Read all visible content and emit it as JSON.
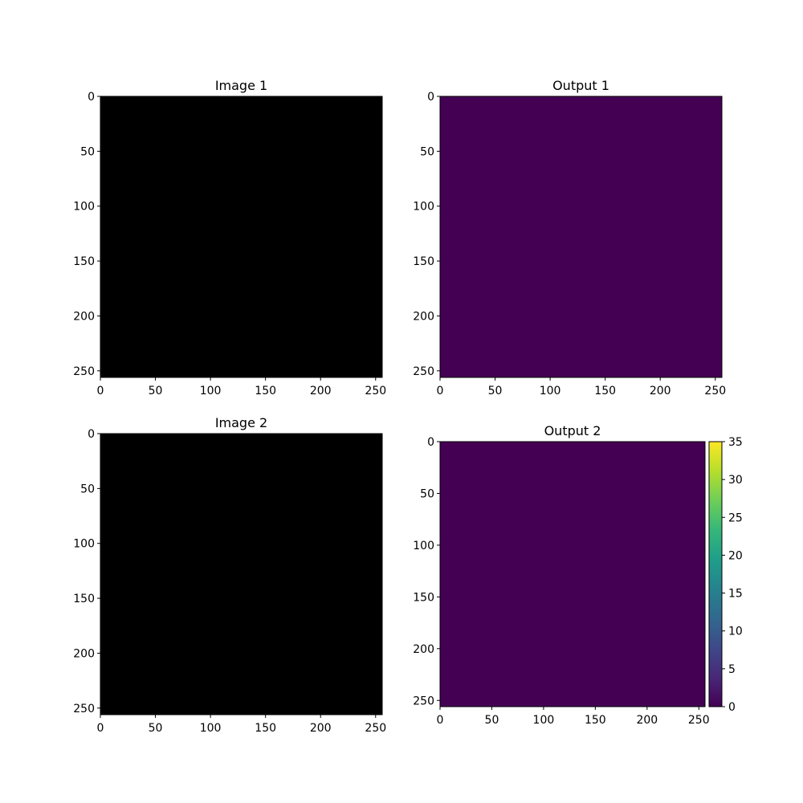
{
  "chart_data": [
    {
      "type": "heatmap",
      "title": "Image 1",
      "cmap": "gray",
      "fill_color": "#000000",
      "xlim": [
        0,
        256
      ],
      "ylim": [
        256,
        0
      ],
      "xticks": [
        0,
        50,
        100,
        150,
        200,
        250
      ],
      "yticks": [
        0,
        50,
        100,
        150,
        200,
        250
      ]
    },
    {
      "type": "heatmap",
      "title": "Output 1",
      "cmap": "viridis",
      "fill_color": "#440154",
      "xlim": [
        0,
        256
      ],
      "ylim": [
        256,
        0
      ],
      "xticks": [
        0,
        50,
        100,
        150,
        200,
        250
      ],
      "yticks": [
        0,
        50,
        100,
        150,
        200,
        250
      ]
    },
    {
      "type": "heatmap",
      "title": "Image 2",
      "cmap": "gray",
      "fill_color": "#000000",
      "xlim": [
        0,
        256
      ],
      "ylim": [
        256,
        0
      ],
      "xticks": [
        0,
        50,
        100,
        150,
        200,
        250
      ],
      "yticks": [
        0,
        50,
        100,
        150,
        200,
        250
      ]
    },
    {
      "type": "heatmap",
      "title": "Output 2",
      "cmap": "viridis",
      "fill_color": "#440154",
      "xlim": [
        0,
        256
      ],
      "ylim": [
        256,
        0
      ],
      "xticks": [
        0,
        50,
        100,
        150,
        200,
        250
      ],
      "yticks": [
        0,
        50,
        100,
        150,
        200,
        250
      ],
      "colorbar": {
        "range": [
          0,
          35
        ],
        "ticks": [
          0,
          5,
          10,
          15,
          20,
          25,
          30,
          35
        ],
        "colors": [
          "#440154",
          "#482878",
          "#3e4989",
          "#31688e",
          "#26828e",
          "#1f9e89",
          "#35b779",
          "#6ece58",
          "#b5de2b",
          "#fde725"
        ]
      }
    }
  ]
}
